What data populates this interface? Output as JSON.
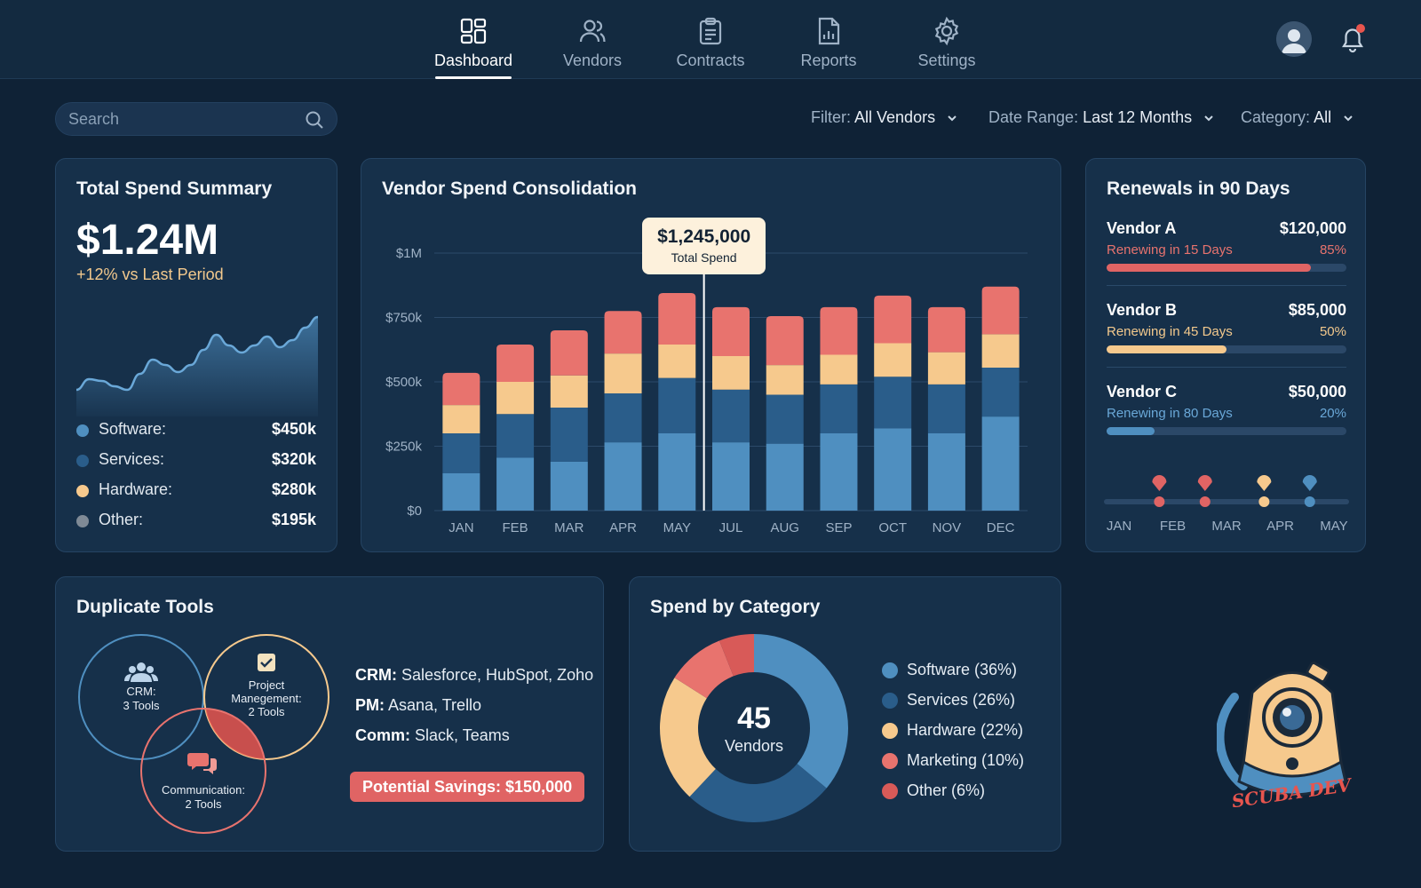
{
  "nav": {
    "items": [
      {
        "label": "Dashboard",
        "icon": "dashboard-icon",
        "active": true
      },
      {
        "label": "Vendors",
        "icon": "users-icon"
      },
      {
        "label": "Contracts",
        "icon": "clipboard-icon"
      },
      {
        "label": "Reports",
        "icon": "report-icon"
      },
      {
        "label": "Settings",
        "icon": "gear-icon"
      }
    ]
  },
  "search": {
    "placeholder": "Search"
  },
  "filters": [
    {
      "label": "Filter:",
      "value": "All Vendors"
    },
    {
      "label": "Date Range:",
      "value": "Last 12 Months"
    },
    {
      "label": "Category:",
      "value": "All"
    }
  ],
  "total_spend": {
    "title": "Total Spend Summary",
    "value": "$1.24M",
    "delta": "+12% vs Last Period",
    "breakdown": [
      {
        "name": "Software:",
        "amount": "$450k",
        "color": "#4f8fc0"
      },
      {
        "name": "Services:",
        "amount": "$320k",
        "color": "#2a5d8a"
      },
      {
        "name": "Hardware:",
        "amount": "$280k",
        "color": "#f6c98d"
      },
      {
        "name": "Other:",
        "amount": "$195k",
        "color": "#7f8a96"
      }
    ]
  },
  "consolidation": {
    "title": "Vendor Spend Consolidation",
    "tooltip": {
      "value": "$1,245,000",
      "label": "Total Spend"
    }
  },
  "renewals": {
    "title": "Renewals in 90 Days",
    "items": [
      {
        "vendor": "Vendor A",
        "amount": "$120,000",
        "note": "Renewing in 15 Days",
        "pct_label": "85%",
        "progress": 0.85,
        "color": "#e06464"
      },
      {
        "vendor": "Vendor B",
        "amount": "$85,000",
        "note": "Renewing in 45 Days",
        "pct_label": "50%",
        "progress": 0.5,
        "color": "#f6c98d"
      },
      {
        "vendor": "Vendor C",
        "amount": "$50,000",
        "note": "Renewing in 80 Days",
        "pct_label": "20%",
        "progress": 0.2,
        "color": "#4f8fc0"
      }
    ],
    "timeline_labels": [
      "JAN",
      "FEB",
      "MAR",
      "APR",
      "MAY"
    ]
  },
  "duplicates": {
    "title": "Duplicate Tools",
    "circles": [
      {
        "label_line1": "CRM:",
        "label_line2": "3 Tools",
        "icon": "group-icon"
      },
      {
        "label_line1": "Project",
        "label_line2": "Manegement:",
        "label_line3": "2 Tools",
        "icon": "checkbox-icon"
      },
      {
        "label_line1": "Communication:",
        "label_line2": "2 Tools",
        "icon": "chat-icon"
      }
    ],
    "lines": [
      {
        "key": "CRM:",
        "value": "Salesforce, HubSpot, Zoho"
      },
      {
        "key": "PM:",
        "value": "Asana, Trello"
      },
      {
        "key": "Comm:",
        "value": "Slack, Teams"
      }
    ],
    "savings": "Potential Savings: $150,000"
  },
  "category": {
    "title": "Spend by Category",
    "center_value": "45",
    "center_label": "Vendors",
    "legend": [
      {
        "label": "Software (36%)",
        "color": "#4f8fc0"
      },
      {
        "label": "Services (26%)",
        "color": "#2a5d8a"
      },
      {
        "label": "Hardware (22%)",
        "color": "#f6c98d"
      },
      {
        "label": "Marketing (10%)",
        "color": "#e8736e"
      },
      {
        "label": "Other (6%)",
        "color": "#d85a58"
      }
    ]
  },
  "logo": {
    "text": "SCUBA DEV"
  },
  "chart_data": [
    {
      "type": "bar",
      "title": "Vendor Spend Consolidation",
      "stacked": true,
      "categories": [
        "JAN",
        "FEB",
        "MAR",
        "APR",
        "MAY",
        "JUL",
        "AUG",
        "SEP",
        "OCT",
        "NOV",
        "DEC"
      ],
      "y_ticks": [
        "$0",
        "$250k",
        "$500k",
        "$750k",
        "$1M"
      ],
      "ylim": [
        0,
        1000000
      ],
      "grid": true,
      "series": [
        {
          "color": "#4f8fc0",
          "values": [
            145000,
            205000,
            190000,
            265000,
            300000,
            265000,
            260000,
            300000,
            320000,
            300000,
            365000
          ]
        },
        {
          "color": "#2a5d8a",
          "values": [
            155000,
            170000,
            210000,
            190000,
            215000,
            205000,
            190000,
            190000,
            200000,
            190000,
            190000
          ]
        },
        {
          "color": "#f6c98d",
          "values": [
            110000,
            125000,
            125000,
            155000,
            130000,
            130000,
            115000,
            115000,
            130000,
            125000,
            130000
          ]
        },
        {
          "color": "#e8736e",
          "values": [
            125000,
            145000,
            175000,
            165000,
            200000,
            190000,
            190000,
            185000,
            185000,
            175000,
            185000
          ]
        }
      ],
      "highlight": {
        "index": 4
      }
    },
    {
      "type": "area",
      "title": "",
      "values": [
        30,
        42,
        40,
        34,
        30,
        48,
        64,
        58,
        50,
        58,
        75,
        92,
        80,
        72,
        80,
        90,
        78,
        86,
        100,
        112
      ],
      "ylim": [
        0,
        130
      ],
      "color": "#4a86b6"
    },
    {
      "type": "pie",
      "donut": true,
      "labels": [
        "Software",
        "Services",
        "Hardware",
        "Marketing",
        "Other"
      ],
      "values": [
        36,
        26,
        22,
        10,
        6
      ]
    },
    {
      "type": "scatter",
      "title": "",
      "x_labels": [
        "JAN",
        "FEB",
        "MAR",
        "APR",
        "MAY"
      ],
      "markers": [
        {
          "x": 1.75,
          "color": "#e06464"
        },
        {
          "x": 2.6,
          "color": "#e06464"
        },
        {
          "x": 3.7,
          "color": "#f6c98d"
        },
        {
          "x": 4.55,
          "color": "#4f8fc0"
        }
      ]
    }
  ]
}
